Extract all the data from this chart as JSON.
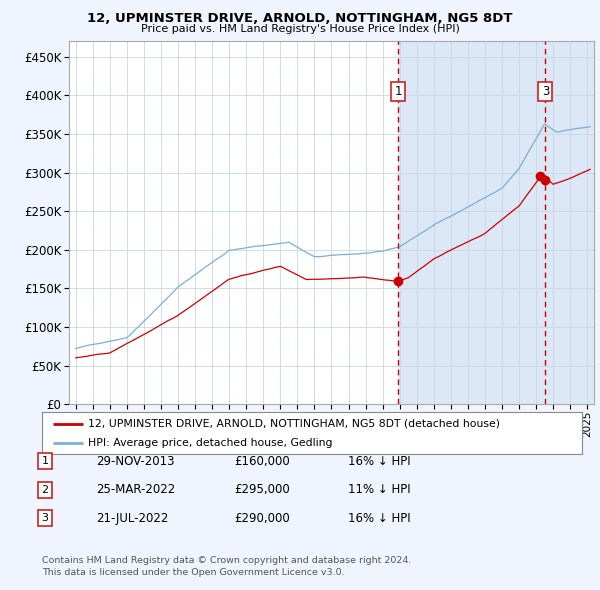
{
  "title": "12, UPMINSTER DRIVE, ARNOLD, NOTTINGHAM, NG5 8DT",
  "subtitle": "Price paid vs. HM Land Registry's House Price Index (HPI)",
  "legend_red": "12, UPMINSTER DRIVE, ARNOLD, NOTTINGHAM, NG5 8DT (detached house)",
  "legend_blue": "HPI: Average price, detached house, Gedling",
  "footer1": "Contains HM Land Registry data © Crown copyright and database right 2024.",
  "footer2": "This data is licensed under the Open Government Licence v3.0.",
  "transactions": [
    {
      "num": 1,
      "date": "29-NOV-2013",
      "price": "£160,000",
      "pct": "16% ↓ HPI",
      "x_year": 2013.91,
      "y_val": 160000
    },
    {
      "num": 2,
      "date": "25-MAR-2022",
      "price": "£295,000",
      "pct": "11% ↓ HPI",
      "x_year": 2022.23,
      "y_val": 295000
    },
    {
      "num": 3,
      "date": "21-JUL-2022",
      "price": "£290,000",
      "pct": "16% ↓ HPI",
      "x_year": 2022.55,
      "y_val": 290000
    }
  ],
  "vline1_x": 2013.91,
  "vline3_x": 2022.55,
  "shade_start": 2013.91,
  "ylim": [
    0,
    470000
  ],
  "xlim_start": 1994.6,
  "xlim_end": 2025.4,
  "bg_color": "#f0f4ff",
  "plot_bg": "#ffffff",
  "grid_color": "#c8d4e8",
  "red_line_color": "#cc0000",
  "blue_line_color": "#7aaedc",
  "shade_color": "#dce8f5",
  "box_edge_color": "#cc2222"
}
